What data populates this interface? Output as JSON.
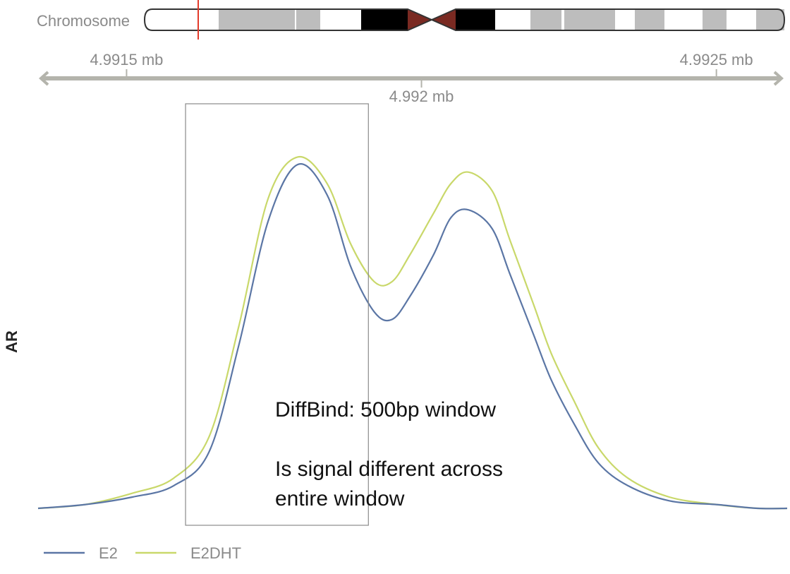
{
  "ideogram": {
    "label": "Chromosome",
    "band_fill": "#bdbdbd",
    "dark_band_fill": "#000000",
    "centromere_fill": "#7a2a22",
    "outline": "#333333",
    "marker_color": "#e33a2a"
  },
  "chart_data": {
    "type": "line",
    "xlabel": "",
    "ylabel": "AR",
    "x_unit": "mb",
    "xlim": [
      4.99135,
      4.99262
    ],
    "ylim": [
      0,
      1
    ],
    "x_ticks": [
      {
        "value": 4.9915,
        "label": "4.9915 mb"
      },
      {
        "value": 4.992,
        "label": "4.992 mb"
      },
      {
        "value": 4.9925,
        "label": "4.9925 mb"
      }
    ],
    "series": [
      {
        "name": "E2",
        "color": "#5b76a5",
        "x": [
          4.99135,
          4.99143,
          4.99151,
          4.99158,
          4.99164,
          4.99169,
          4.99174,
          4.99179,
          4.99184,
          4.99188,
          4.99192,
          4.99195,
          4.99198,
          4.99202,
          4.99205,
          4.99208,
          4.99212,
          4.99215,
          4.99219,
          4.99222,
          4.99226,
          4.9923,
          4.99235,
          4.99242,
          4.9925,
          4.99257,
          4.99262
        ],
        "y": [
          0.0,
          0.01,
          0.03,
          0.06,
          0.15,
          0.43,
          0.76,
          0.91,
          0.83,
          0.64,
          0.52,
          0.5,
          0.56,
          0.67,
          0.77,
          0.79,
          0.74,
          0.62,
          0.46,
          0.34,
          0.22,
          0.12,
          0.06,
          0.02,
          0.01,
          0.0,
          0.0
        ]
      },
      {
        "name": "E2DHT",
        "color": "#c9d86a",
        "x": [
          4.99135,
          4.99143,
          4.99151,
          4.99158,
          4.99164,
          4.99169,
          4.99174,
          4.99179,
          4.99184,
          4.99188,
          4.99192,
          4.99195,
          4.99198,
          4.99202,
          4.99205,
          4.99208,
          4.99212,
          4.99215,
          4.99219,
          4.99222,
          4.99226,
          4.9923,
          4.99235,
          4.99242,
          4.9925,
          4.99257,
          4.99262
        ],
        "y": [
          0.0,
          0.01,
          0.04,
          0.08,
          0.19,
          0.48,
          0.82,
          0.93,
          0.86,
          0.7,
          0.6,
          0.6,
          0.67,
          0.78,
          0.86,
          0.89,
          0.84,
          0.71,
          0.54,
          0.41,
          0.28,
          0.16,
          0.08,
          0.03,
          0.01,
          0.0,
          0.0
        ]
      }
    ],
    "annotation": {
      "x_start": 4.9916,
      "x_end": 4.99191,
      "line1": "DiffBind: 500bp window",
      "line2": "Is signal different across",
      "line3": "entire window"
    },
    "legend": {
      "placement": "bottom-left"
    }
  }
}
